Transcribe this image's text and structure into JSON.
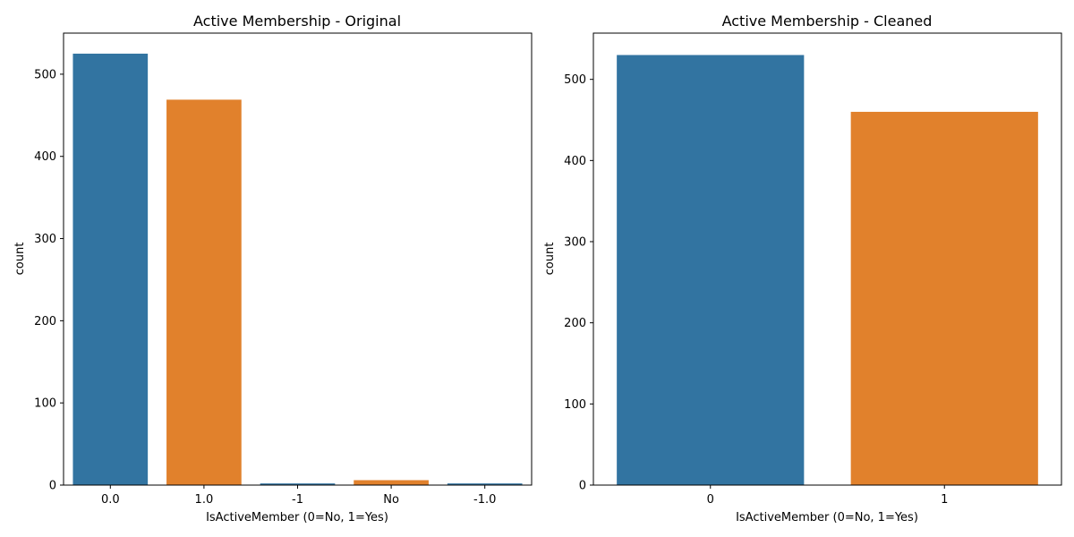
{
  "chart_data": [
    {
      "type": "bar",
      "title": "Active Membership - Original",
      "xlabel": "IsActiveMember (0=No, 1=Yes)",
      "ylabel": "count",
      "categories": [
        "0.0",
        "1.0",
        "-1",
        "No",
        "-1.0"
      ],
      "values": [
        525,
        469,
        2,
        6,
        2
      ],
      "colors": [
        "#3274a1",
        "#e1812c",
        "#3274a1",
        "#e1812c",
        "#3274a1"
      ],
      "yticks": [
        0,
        100,
        200,
        300,
        400,
        500
      ],
      "ylim": [
        0,
        550
      ],
      "grid": false,
      "legend": "none"
    },
    {
      "type": "bar",
      "title": "Active Membership - Cleaned",
      "xlabel": "IsActiveMember (0=No, 1=Yes)",
      "ylabel": "count",
      "categories": [
        "0",
        "1"
      ],
      "values": [
        530,
        460
      ],
      "colors": [
        "#3274a1",
        "#e1812c"
      ],
      "yticks": [
        0,
        100,
        200,
        300,
        400,
        500
      ],
      "ylim": [
        0,
        557
      ],
      "grid": false,
      "legend": "none"
    }
  ]
}
